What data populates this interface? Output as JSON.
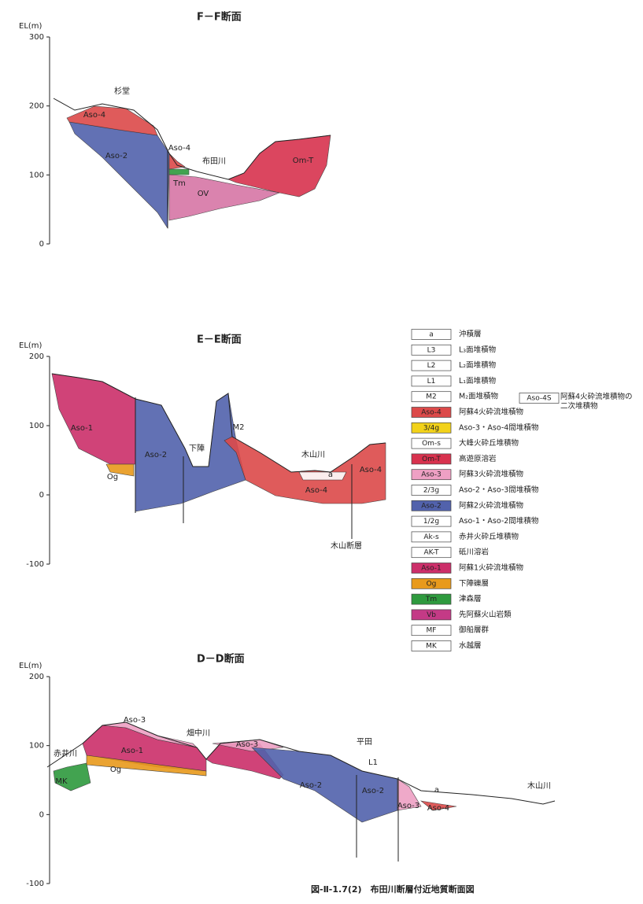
{
  "sections": [
    {
      "title": "F－F断面",
      "axis_label": "EL(m)",
      "ylim": [
        0,
        300
      ],
      "yticks": [
        300,
        200,
        100,
        0
      ],
      "labels": [
        "杉堂",
        "Aso-4",
        "Aso-2",
        "Aso-4",
        "布田川",
        "Om-T",
        "Tm",
        "OV"
      ]
    },
    {
      "title": "E－E断面",
      "axis_label": "EL(m)",
      "ylim": [
        -100,
        200
      ],
      "yticks": [
        200,
        100,
        0,
        -100
      ],
      "labels": [
        "Aso-1",
        "Og",
        "Aso-2",
        "下陣",
        "M2",
        "木山川",
        "a",
        "Aso-4",
        "Aso-4",
        "木山断層"
      ]
    },
    {
      "title": "D－D断面",
      "axis_label": "EL(m)",
      "ylim": [
        -100,
        200
      ],
      "yticks": [
        200,
        100,
        0,
        -100
      ],
      "labels": [
        "Aso-3",
        "赤井川",
        "Aso-1",
        "畑中川",
        "Aso-3",
        "Og",
        "MK",
        "Aso-2",
        "平田",
        "L1",
        "Aso-2",
        "a",
        "Aso-3",
        "Aso-4",
        "木山川"
      ]
    }
  ],
  "legend": [
    {
      "code": "a",
      "text": "沖積層",
      "color": "#ffffff"
    },
    {
      "code": "L3",
      "text": "L₃面堆積物",
      "color": "#ffffff"
    },
    {
      "code": "L2",
      "text": "L₂面堆積物",
      "color": "#ffffff"
    },
    {
      "code": "L1",
      "text": "L₁面堆積物",
      "color": "#ffffff"
    },
    {
      "code": "M2",
      "text": "M₂面堆積物",
      "color": "#ffffff"
    },
    {
      "code": "Aso-4",
      "text": "阿蘇4火砕流堆積物",
      "color": "#dc4a4a"
    },
    {
      "code": "3/4g",
      "text": "Aso-3・Aso-4間堆積物",
      "color": "#f2d21a"
    },
    {
      "code": "Om-s",
      "text": "大峰火砕丘堆積物",
      "color": "#ffffff"
    },
    {
      "code": "Om-T",
      "text": "高遊原溶岩",
      "color": "#d8324e"
    },
    {
      "code": "Aso-3",
      "text": "阿蘇3火砕流堆積物",
      "color": "#eea0c4"
    },
    {
      "code": "2/3g",
      "text": "Aso-2・Aso-3間堆積物",
      "color": "#ffffff"
    },
    {
      "code": "Aso-2",
      "text": "阿蘇2火砕流堆積物",
      "color": "#5262ac"
    },
    {
      "code": "1/2g",
      "text": "Aso-1・Aso-2間堆積物",
      "color": "#ffffff"
    },
    {
      "code": "Ak-s",
      "text": "赤井火砕丘堆積物",
      "color": "#ffffff"
    },
    {
      "code": "AK-T",
      "text": "砥川溶岩",
      "color": "#ffffff"
    },
    {
      "code": "Aso-1",
      "text": "阿蘇1火砕流堆積物",
      "color": "#cc2f6a"
    },
    {
      "code": "Og",
      "text": "下陣礫層",
      "color": "#e89a1c"
    },
    {
      "code": "Tm",
      "text": "津森層",
      "color": "#2e9a3e"
    },
    {
      "code": "Vb",
      "text": "先阿蘇火山岩類",
      "color": "#c43a86"
    },
    {
      "code": "MF",
      "text": "御船層群",
      "color": "#ffffff"
    },
    {
      "code": "MK",
      "text": "水越層",
      "color": "#ffffff"
    }
  ],
  "legend_extra": {
    "code": "Aso-4S",
    "text": "阿蘇4火砕流堆積物の二次堆積物"
  },
  "caption": "図-Ⅱ-1.7(2)　布田川断層付近地質断面図"
}
